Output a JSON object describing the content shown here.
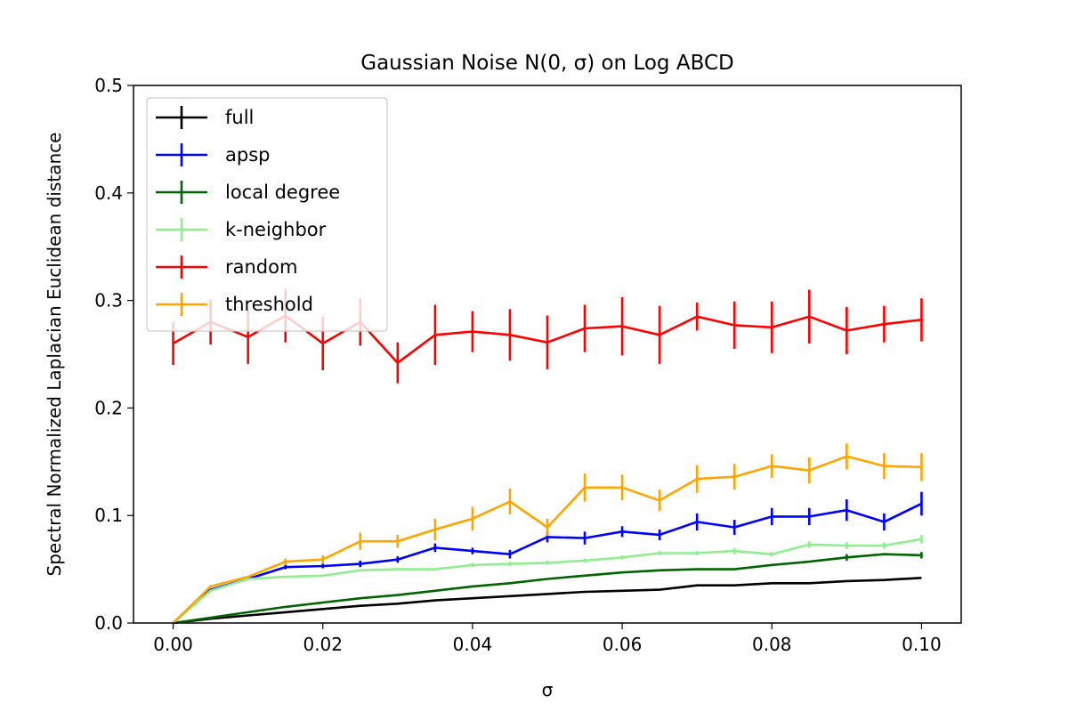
{
  "chart_data": {
    "type": "line",
    "title": "Gaussian Noise N(0, σ) on Log ABCD",
    "xlabel": "σ",
    "ylabel": "Spectral Normalized Laplacian Euclidean distance",
    "xlim": [
      -0.0053,
      0.1053
    ],
    "ylim": [
      0,
      0.5
    ],
    "xticks": [
      0.0,
      0.02,
      0.04,
      0.06,
      0.08,
      0.1
    ],
    "xtick_labels": [
      "0.00",
      "0.02",
      "0.04",
      "0.06",
      "0.08",
      "0.10"
    ],
    "yticks": [
      0.0,
      0.1,
      0.2,
      0.3,
      0.4,
      0.5
    ],
    "ytick_labels": [
      "0.0",
      "0.1",
      "0.2",
      "0.3",
      "0.4",
      "0.5"
    ],
    "grid": false,
    "legend_position": "top-left",
    "x": [
      0.0,
      0.005,
      0.01,
      0.015,
      0.02,
      0.025,
      0.03,
      0.035,
      0.04,
      0.045,
      0.05,
      0.055,
      0.06,
      0.065,
      0.07,
      0.075,
      0.08,
      0.085,
      0.09,
      0.095,
      0.1
    ],
    "series": [
      {
        "name": "full",
        "color": "#000000",
        "values": [
          0.0,
          0.004,
          0.007,
          0.01,
          0.013,
          0.016,
          0.018,
          0.021,
          0.023,
          0.025,
          0.027,
          0.029,
          0.03,
          0.031,
          0.035,
          0.035,
          0.037,
          0.037,
          0.039,
          0.04,
          0.042
        ],
        "errors": [
          0,
          0,
          0,
          0,
          0,
          0,
          0,
          0,
          0,
          0,
          0,
          0,
          0,
          0,
          0,
          0,
          0,
          0,
          0,
          0,
          0
        ]
      },
      {
        "name": "apsp",
        "color": "#0000ff",
        "values": [
          0.0,
          0.031,
          0.041,
          0.052,
          0.053,
          0.055,
          0.059,
          0.07,
          0.067,
          0.064,
          0.08,
          0.079,
          0.085,
          0.082,
          0.094,
          0.089,
          0.099,
          0.099,
          0.105,
          0.094,
          0.111
        ],
        "errors": [
          0,
          0,
          0,
          0.002,
          0.002,
          0.003,
          0.003,
          0.004,
          0.003,
          0.004,
          0.005,
          0.006,
          0.005,
          0.005,
          0.008,
          0.007,
          0.008,
          0.008,
          0.01,
          0.008,
          0.011
        ]
      },
      {
        "name": "local degree",
        "color": "#006400",
        "values": [
          0.0,
          0.005,
          0.01,
          0.015,
          0.019,
          0.023,
          0.026,
          0.03,
          0.034,
          0.037,
          0.041,
          0.044,
          0.047,
          0.049,
          0.05,
          0.05,
          0.054,
          0.057,
          0.061,
          0.064,
          0.063
        ],
        "errors": [
          0,
          0,
          0,
          0,
          0,
          0,
          0,
          0,
          0,
          0,
          0,
          0,
          0,
          0,
          0,
          0,
          0,
          0,
          0.003,
          0,
          0.003
        ]
      },
      {
        "name": "k-neighbor",
        "color": "#90ee90",
        "values": [
          0.0,
          0.03,
          0.041,
          0.043,
          0.044,
          0.049,
          0.05,
          0.05,
          0.054,
          0.055,
          0.056,
          0.058,
          0.061,
          0.065,
          0.065,
          0.067,
          0.064,
          0.073,
          0.072,
          0.072,
          0.078
        ],
        "errors": [
          0,
          0,
          0,
          0,
          0,
          0,
          0,
          0,
          0.002,
          0.002,
          0.002,
          0.002,
          0.002,
          0.002,
          0.002,
          0.003,
          0.002,
          0.003,
          0.003,
          0.003,
          0.004
        ]
      },
      {
        "name": "random",
        "color": "#ff0000",
        "values": [
          0.26,
          0.28,
          0.266,
          0.286,
          0.26,
          0.28,
          0.242,
          0.268,
          0.271,
          0.268,
          0.261,
          0.274,
          0.276,
          0.268,
          0.285,
          0.277,
          0.275,
          0.285,
          0.272,
          0.278,
          0.282
        ],
        "errors": [
          0.02,
          0.021,
          0.025,
          0.025,
          0.025,
          0.022,
          0.019,
          0.028,
          0.019,
          0.024,
          0.025,
          0.022,
          0.027,
          0.027,
          0.013,
          0.022,
          0.024,
          0.025,
          0.022,
          0.017,
          0.02
        ]
      },
      {
        "name": "threshold",
        "color": "#ffa500",
        "values": [
          0.0,
          0.034,
          0.043,
          0.057,
          0.059,
          0.076,
          0.076,
          0.087,
          0.097,
          0.113,
          0.089,
          0.126,
          0.126,
          0.114,
          0.134,
          0.136,
          0.146,
          0.142,
          0.155,
          0.146,
          0.145
        ],
        "errors": [
          0,
          0,
          0,
          0.003,
          0.004,
          0.008,
          0.006,
          0.01,
          0.011,
          0.012,
          0.008,
          0.013,
          0.012,
          0.01,
          0.013,
          0.012,
          0.011,
          0.012,
          0.012,
          0.012,
          0.013
        ]
      }
    ]
  }
}
